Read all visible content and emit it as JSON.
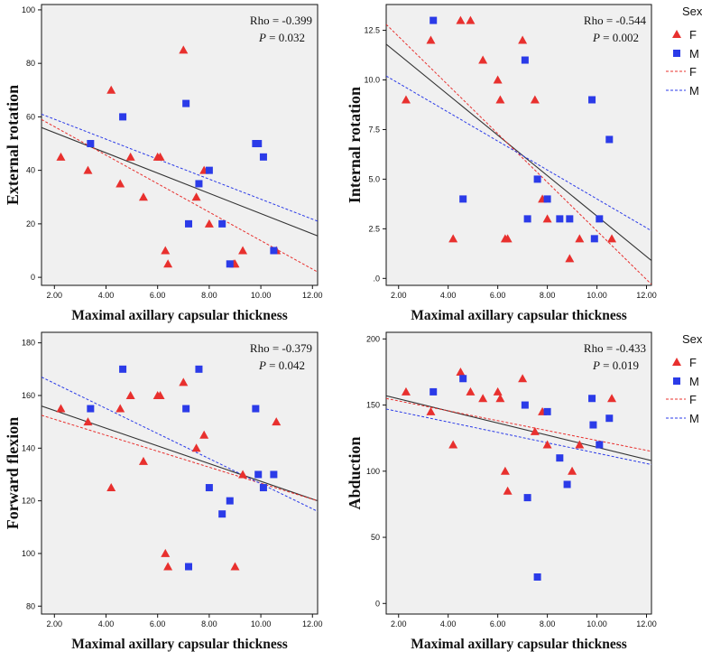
{
  "colors": {
    "female": "#e8302e",
    "male": "#2b3be8",
    "fit_total": "#333333",
    "plot_bg": "#f0f0f0"
  },
  "legend": {
    "title": "Sex",
    "markers": [
      {
        "key": "F",
        "label": "F"
      },
      {
        "key": "M",
        "label": "M"
      }
    ],
    "lines": [
      {
        "key": "F",
        "label": "F"
      },
      {
        "key": "M",
        "label": "M"
      }
    ]
  },
  "chart_data": [
    {
      "type": "scatter",
      "ylabel": "External rotation",
      "xlabel": "Maximal axillary capsular thickness",
      "xlim": [
        1.5,
        12.2
      ],
      "ylim": [
        -3,
        102
      ],
      "xticks": [
        "2.00",
        "4.00",
        "6.00",
        "8.00",
        "10.00",
        "12.00"
      ],
      "xtick_values": [
        2,
        4,
        6,
        8,
        10,
        12
      ],
      "yticks": [
        "0",
        "20",
        "40",
        "60",
        "80",
        "100"
      ],
      "ytick_values": [
        0,
        20,
        40,
        60,
        80,
        100
      ],
      "stats": {
        "rho": "Rho = -0.399",
        "p_label": "P",
        "p_value": " = 0.032"
      },
      "legend": false,
      "series": [
        {
          "name": "F",
          "marker": "triangle",
          "points": [
            [
              2.25,
              45
            ],
            [
              3.3,
              40
            ],
            [
              4.2,
              70
            ],
            [
              4.55,
              35
            ],
            [
              4.95,
              45
            ],
            [
              5.45,
              30
            ],
            [
              6.0,
              45
            ],
            [
              6.1,
              45
            ],
            [
              6.3,
              10
            ],
            [
              6.4,
              5
            ],
            [
              7.0,
              85
            ],
            [
              7.5,
              30
            ],
            [
              7.8,
              40
            ],
            [
              8.0,
              20
            ],
            [
              8.95,
              5
            ],
            [
              9.0,
              5
            ],
            [
              9.3,
              10
            ],
            [
              10.6,
              10
            ]
          ]
        },
        {
          "name": "M",
          "marker": "square",
          "points": [
            [
              3.4,
              50
            ],
            [
              4.65,
              60
            ],
            [
              7.1,
              65
            ],
            [
              7.2,
              20
            ],
            [
              7.6,
              35
            ],
            [
              8.0,
              40
            ],
            [
              8.5,
              20
            ],
            [
              8.8,
              5
            ],
            [
              9.8,
              50
            ],
            [
              9.9,
              50
            ],
            [
              10.1,
              45
            ],
            [
              10.5,
              10
            ]
          ]
        }
      ],
      "fits": [
        {
          "name": "Total",
          "from": [
            1.5,
            56
          ],
          "to": [
            12.2,
            15.5
          ]
        },
        {
          "name": "F",
          "from": [
            1.5,
            59
          ],
          "to": [
            12.2,
            2
          ]
        },
        {
          "name": "M",
          "from": [
            1.5,
            61
          ],
          "to": [
            12.2,
            21
          ]
        }
      ]
    },
    {
      "type": "scatter",
      "ylabel": "Internal rotation",
      "xlabel": "Maximal axillary capsular thickness",
      "xlim": [
        1.5,
        12.2
      ],
      "ylim": [
        -0.35,
        13.8
      ],
      "xticks": [
        "2.00",
        "4.00",
        "6.00",
        "8.00",
        "10.00",
        "12.00"
      ],
      "xtick_values": [
        2,
        4,
        6,
        8,
        10,
        12
      ],
      "yticks": [
        ".0",
        "2.5",
        "5.0",
        "7.5",
        "10.0",
        "12.5"
      ],
      "ytick_values": [
        0,
        2.5,
        5,
        7.5,
        10,
        12.5
      ],
      "stats": {
        "rho": "Rho = -0.544",
        "p_label": "P",
        "p_value": " = 0.002"
      },
      "legend": true,
      "series": [
        {
          "name": "F",
          "marker": "triangle",
          "points": [
            [
              2.3,
              9
            ],
            [
              3.3,
              12
            ],
            [
              4.2,
              2
            ],
            [
              4.5,
              13
            ],
            [
              4.9,
              13
            ],
            [
              5.4,
              11
            ],
            [
              6.0,
              10
            ],
            [
              6.1,
              9
            ],
            [
              6.3,
              2
            ],
            [
              6.4,
              2
            ],
            [
              7.0,
              12
            ],
            [
              7.5,
              9
            ],
            [
              7.8,
              4
            ],
            [
              8.0,
              3
            ],
            [
              8.9,
              1
            ],
            [
              9.3,
              2
            ],
            [
              10.6,
              2
            ]
          ]
        },
        {
          "name": "M",
          "marker": "square",
          "points": [
            [
              3.4,
              13
            ],
            [
              4.6,
              4
            ],
            [
              7.1,
              11
            ],
            [
              7.2,
              3
            ],
            [
              7.6,
              5
            ],
            [
              8.0,
              4
            ],
            [
              8.5,
              3
            ],
            [
              8.9,
              3
            ],
            [
              9.8,
              9
            ],
            [
              9.9,
              2
            ],
            [
              10.1,
              3
            ],
            [
              10.5,
              7
            ]
          ]
        }
      ],
      "fits": [
        {
          "name": "Total",
          "from": [
            1.5,
            11.8
          ],
          "to": [
            12.2,
            0.9
          ]
        },
        {
          "name": "F",
          "from": [
            1.5,
            12.8
          ],
          "to": [
            12.2,
            -0.3
          ]
        },
        {
          "name": "M",
          "from": [
            1.5,
            10.2
          ],
          "to": [
            12.2,
            2.4
          ]
        }
      ]
    },
    {
      "type": "scatter",
      "ylabel": "Forward flexion",
      "xlabel": "Maximal axillary capsular thickness",
      "xlim": [
        1.5,
        12.2
      ],
      "ylim": [
        77,
        184
      ],
      "xticks": [
        "2.00",
        "4.00",
        "6.00",
        "8.00",
        "10.00",
        "12.00"
      ],
      "xtick_values": [
        2,
        4,
        6,
        8,
        10,
        12
      ],
      "yticks": [
        "80",
        "100",
        "120",
        "140",
        "160",
        "180"
      ],
      "ytick_values": [
        80,
        100,
        120,
        140,
        160,
        180
      ],
      "stats": {
        "rho": "Rho = -0.379",
        "p_label": "P",
        "p_value": " = 0.042"
      },
      "legend": false,
      "series": [
        {
          "name": "F",
          "marker": "triangle",
          "points": [
            [
              2.25,
              155
            ],
            [
              3.3,
              150
            ],
            [
              4.2,
              125
            ],
            [
              4.55,
              155
            ],
            [
              4.95,
              160
            ],
            [
              5.45,
              135
            ],
            [
              6.0,
              160
            ],
            [
              6.1,
              160
            ],
            [
              6.3,
              100
            ],
            [
              6.4,
              95
            ],
            [
              7.0,
              165
            ],
            [
              7.5,
              140
            ],
            [
              7.8,
              145
            ],
            [
              9.0,
              95
            ],
            [
              9.3,
              130
            ],
            [
              10.6,
              150
            ]
          ]
        },
        {
          "name": "M",
          "marker": "square",
          "points": [
            [
              3.4,
              155
            ],
            [
              4.65,
              170
            ],
            [
              7.1,
              155
            ],
            [
              7.2,
              95
            ],
            [
              7.6,
              170
            ],
            [
              8.0,
              125
            ],
            [
              8.5,
              115
            ],
            [
              8.8,
              120
            ],
            [
              9.8,
              155
            ],
            [
              9.9,
              130
            ],
            [
              10.1,
              125
            ],
            [
              10.5,
              130
            ]
          ]
        }
      ],
      "fits": [
        {
          "name": "Total",
          "from": [
            1.5,
            156
          ],
          "to": [
            12.2,
            120
          ]
        },
        {
          "name": "F",
          "from": [
            1.5,
            152.5
          ],
          "to": [
            12.2,
            120
          ]
        },
        {
          "name": "M",
          "from": [
            1.5,
            167
          ],
          "to": [
            12.2,
            116
          ]
        }
      ]
    },
    {
      "type": "scatter",
      "ylabel": "Abduction",
      "xlabel": "Maximal axillary capsular thickness",
      "xlim": [
        1.5,
        12.2
      ],
      "ylim": [
        -8,
        205
      ],
      "xticks": [
        "2.00",
        "4.00",
        "6.00",
        "8.00",
        "10.00",
        "12.00"
      ],
      "xtick_values": [
        2,
        4,
        6,
        8,
        10,
        12
      ],
      "yticks": [
        "0",
        "50",
        "100",
        "150",
        "200"
      ],
      "ytick_values": [
        0,
        50,
        100,
        150,
        200
      ],
      "stats": {
        "rho": "Rho = -0.433",
        "p_label": "P",
        "p_value": " = 0.019"
      },
      "legend": true,
      "series": [
        {
          "name": "F",
          "marker": "triangle",
          "points": [
            [
              2.3,
              160
            ],
            [
              3.3,
              145
            ],
            [
              4.2,
              120
            ],
            [
              4.5,
              175
            ],
            [
              4.9,
              160
            ],
            [
              5.4,
              155
            ],
            [
              6.0,
              160
            ],
            [
              6.1,
              155
            ],
            [
              6.3,
              100
            ],
            [
              6.4,
              85
            ],
            [
              7.0,
              170
            ],
            [
              7.5,
              130
            ],
            [
              7.8,
              145
            ],
            [
              8.0,
              120
            ],
            [
              9.0,
              100
            ],
            [
              9.3,
              120
            ],
            [
              10.6,
              155
            ]
          ]
        },
        {
          "name": "M",
          "marker": "square",
          "points": [
            [
              3.4,
              160
            ],
            [
              4.6,
              170
            ],
            [
              7.1,
              150
            ],
            [
              7.2,
              80
            ],
            [
              7.6,
              20
            ],
            [
              8.0,
              145
            ],
            [
              8.5,
              110
            ],
            [
              8.8,
              90
            ],
            [
              9.8,
              155
            ],
            [
              9.85,
              135
            ],
            [
              10.1,
              120
            ],
            [
              10.5,
              140
            ]
          ]
        }
      ],
      "fits": [
        {
          "name": "Total",
          "from": [
            1.5,
            157
          ],
          "to": [
            12.2,
            108
          ]
        },
        {
          "name": "F",
          "from": [
            1.5,
            155
          ],
          "to": [
            12.2,
            115
          ]
        },
        {
          "name": "M",
          "from": [
            1.5,
            147
          ],
          "to": [
            12.2,
            105
          ]
        }
      ]
    }
  ]
}
